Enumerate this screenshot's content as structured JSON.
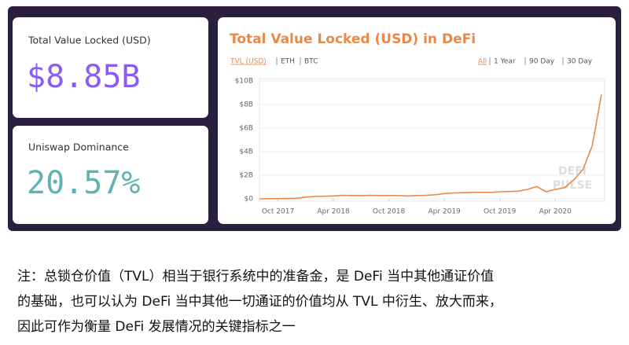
{
  "cards": [
    {
      "label": "Total Value Locked (USD)",
      "value": "$8.85B",
      "color": "#8a5cf5"
    },
    {
      "label": "Uniswap Dominance",
      "value": "20.57%",
      "color": "#5fb3b3"
    }
  ],
  "chart_data": {
    "type": "line",
    "title": "Total Value Locked (USD) in DeFi",
    "tabs": [
      "TVL (USD)",
      "ETH",
      "BTC"
    ],
    "ranges": [
      "All",
      "1 Year",
      "90 Day",
      "30 Day"
    ],
    "watermark": [
      "DEFI",
      "PULSE"
    ],
    "x": [
      "2017-08",
      "2017-09",
      "2017-10",
      "2017-11",
      "2017-12",
      "2018-01",
      "2018-02",
      "2018-03",
      "2018-04",
      "2018-05",
      "2018-06",
      "2018-07",
      "2018-08",
      "2018-09",
      "2018-10",
      "2018-11",
      "2018-12",
      "2019-01",
      "2019-02",
      "2019-03",
      "2019-04",
      "2019-05",
      "2019-06",
      "2019-07",
      "2019-08",
      "2019-09",
      "2019-10",
      "2019-11",
      "2019-12",
      "2020-01",
      "2020-02",
      "2020-03",
      "2020-04",
      "2020-05",
      "2020-06",
      "2020-07",
      "2020-08",
      "2020-09"
    ],
    "series": [
      {
        "name": "TVL (USD)",
        "color": "#e8894a",
        "values": [
          0,
          0.01,
          0.02,
          0.03,
          0.05,
          0.15,
          0.2,
          0.22,
          0.25,
          0.3,
          0.28,
          0.27,
          0.3,
          0.28,
          0.28,
          0.27,
          0.25,
          0.28,
          0.3,
          0.35,
          0.45,
          0.5,
          0.52,
          0.55,
          0.55,
          0.55,
          0.6,
          0.62,
          0.65,
          0.8,
          1.05,
          0.6,
          0.8,
          0.95,
          1.6,
          2.5,
          4.5,
          8.85
        ]
      }
    ],
    "xlim": [
      "2017-08",
      "2020-09"
    ],
    "xticks": [
      {
        "value": "2017-10",
        "label": "Oct 2017"
      },
      {
        "value": "2018-04",
        "label": "Apr 2018"
      },
      {
        "value": "2018-10",
        "label": "Oct 2018"
      },
      {
        "value": "2019-04",
        "label": "Apr 2019"
      },
      {
        "value": "2019-10",
        "label": "Oct 2019"
      },
      {
        "value": "2020-04",
        "label": "Apr 2020"
      }
    ],
    "ylim": [
      0,
      10
    ],
    "yticks": [
      {
        "value": 0,
        "label": "$0"
      },
      {
        "value": 2,
        "label": "$2B"
      },
      {
        "value": 4,
        "label": "$4B"
      },
      {
        "value": 6,
        "label": "$6B"
      },
      {
        "value": 8,
        "label": "$8B"
      },
      {
        "value": 10,
        "label": "$10B"
      }
    ],
    "grid": true
  },
  "note": {
    "lines": [
      "注：总锁仓价值（TVL）相当于银行系统中的准备金，是 DeFi 当中其他通证价值",
      "的基础，也可以认为 DeFi 当中其他一切通证的价值均从 TVL 中衍生、放大而来，",
      "因此可作为衡量 DeFi 发展情况的关键指标之一"
    ]
  }
}
